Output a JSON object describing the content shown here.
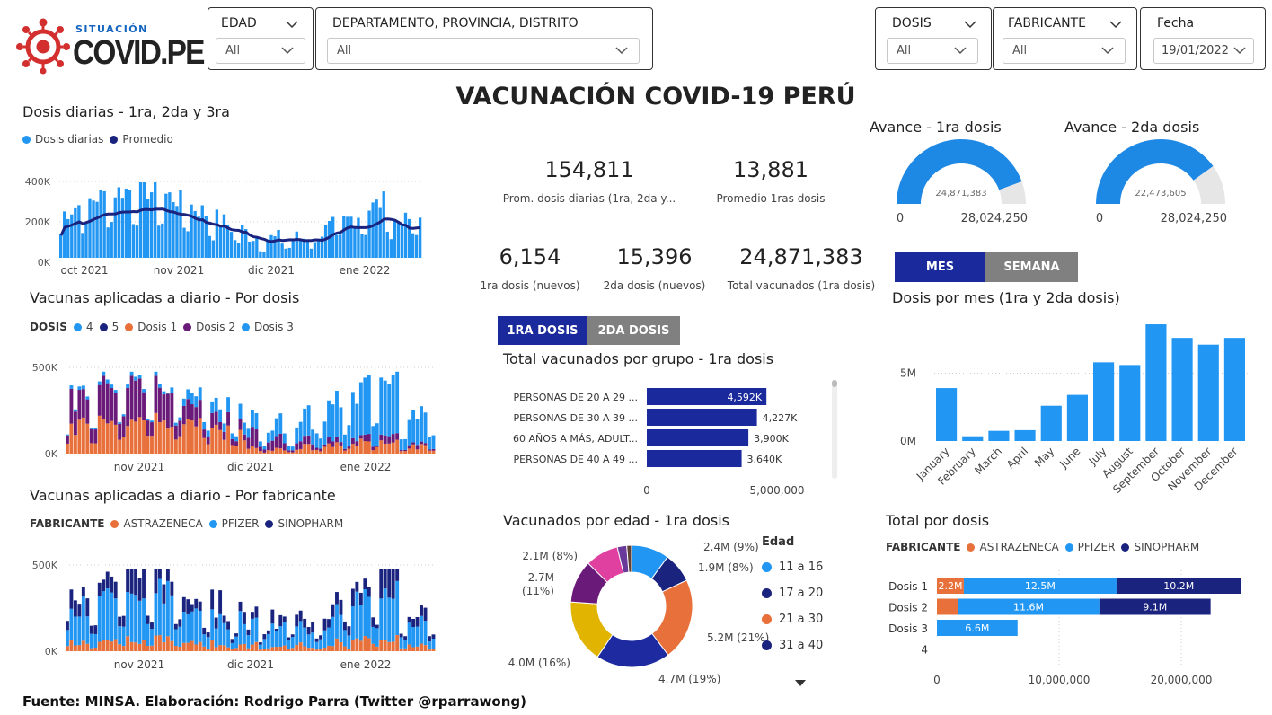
{
  "logo": {
    "top": "SITUACIÓN",
    "main": "COVID.PE"
  },
  "filters": {
    "edad": {
      "label": "EDAD",
      "value": "All"
    },
    "location": {
      "label": "DEPARTAMENTO, PROVINCIA, DISTRITO",
      "value": "All"
    },
    "dosis": {
      "label": "DOSIS",
      "value": "All"
    },
    "fabricante": {
      "label": "FABRICANTE",
      "value": "All"
    },
    "fecha": {
      "label": "Fecha",
      "value": "19/01/2022"
    }
  },
  "main_title": "VACUNACIÓN COVID-19 PERÚ",
  "kpis": {
    "prom_dosis": {
      "value": "154,811",
      "label": "Prom. dosis diarias (1ra, 2da y..."
    },
    "prom_1ras": {
      "value": "13,881",
      "label": "Promedio 1ras dosis"
    },
    "primera_nuevos": {
      "value": "6,154",
      "label": "1ra dosis (nuevos)"
    },
    "segunda_nuevos": {
      "value": "15,396",
      "label": "2da dosis (nuevos)"
    },
    "total_vacunados": {
      "value": "24,871,383",
      "label": "Total vacunados (1ra dosis)"
    }
  },
  "gauges": [
    {
      "title": "Avance - 1ra dosis",
      "center": "24,871,383",
      "min": "0",
      "max": "28,024,250",
      "fraction": 0.8875
    },
    {
      "title": "Avance - 2da dosis",
      "center": "22,473,605",
      "min": "0",
      "max": "28,024,250",
      "fraction": 0.802
    }
  ],
  "daily": {
    "title": "Dosis diarias - 1ra, 2da y 3ra",
    "legend": [
      "Dosis diarias",
      "Promedio"
    ],
    "yticks": [
      "400K",
      "200K",
      "0K"
    ],
    "xticks": [
      "oct 2021",
      "nov 2021",
      "dic 2021",
      "ene 2022"
    ],
    "colors": {
      "bars": "#2196f3",
      "line": "#1a237e"
    }
  },
  "por_dosis": {
    "title": "Vacunas aplicadas a diario - Por dosis",
    "legend_title": "DOSIS",
    "legend": [
      {
        "label": "4",
        "color": "#2196f3"
      },
      {
        "label": "5",
        "color": "#1a237e"
      },
      {
        "label": "Dosis 1",
        "color": "#e8703a"
      },
      {
        "label": "Dosis 2",
        "color": "#6a1b7a"
      },
      {
        "label": "Dosis 3",
        "color": "#2196f3"
      }
    ],
    "yticks": [
      "500K",
      "0K"
    ],
    "xticks": [
      "nov 2021",
      "dic 2021",
      "ene 2022"
    ]
  },
  "por_fabricante": {
    "title": "Vacunas aplicadas a diario - Por fabricante",
    "legend_title": "FABRICANTE",
    "legend": [
      {
        "label": "ASTRAZENECA",
        "color": "#e8703a"
      },
      {
        "label": "PFIZER",
        "color": "#2196f3"
      },
      {
        "label": "SINOPHARM",
        "color": "#1a237e"
      }
    ],
    "yticks": [
      "500K",
      "0K"
    ],
    "xticks": [
      "nov 2021",
      "dic 2021",
      "ene 2022"
    ]
  },
  "tabs_dosis": {
    "active": "1RA DOSIS",
    "inactive": "2DA DOSIS"
  },
  "tabs_period": {
    "active": "MES",
    "inactive": "SEMANA"
  },
  "grupo": {
    "title": "Total vacunados por grupo - 1ra dosis",
    "x_max": "5,000,000",
    "x_min": "0",
    "chart_data": {
      "type": "bar",
      "categories": [
        "PERSONAS DE 20 A 29 ...",
        "PERSONAS DE 30 A 39 ...",
        "60 AÑOS A MÁS, ADULT...",
        "PERSONAS DE 40 A 49 ..."
      ],
      "values": [
        4592000,
        4227000,
        3900000,
        3640000
      ],
      "labels": [
        "4,592K",
        "4,227K",
        "3,900K",
        "3,640K"
      ],
      "xlim": [
        0,
        5000000
      ]
    }
  },
  "edad": {
    "title": "Vacunados por edad - 1ra dosis",
    "legend_title": "Edad",
    "legend": [
      {
        "label": "11 a 16",
        "color": "#2196f3"
      },
      {
        "label": "17 a 20",
        "color": "#1a237e"
      },
      {
        "label": "21 a 30",
        "color": "#e8703a"
      },
      {
        "label": "31 a 40",
        "color": "#1a237e"
      }
    ],
    "chart_data": {
      "type": "pie",
      "slices": [
        {
          "value": 2.4,
          "color": "#2196f3",
          "label": "2.4M (9%)"
        },
        {
          "value": 1.9,
          "color": "#1a237e",
          "label": "1.9M (8%)"
        },
        {
          "value": 5.2,
          "color": "#e8703a",
          "label": "5.2M (21%)"
        },
        {
          "value": 4.7,
          "color": "#1e2aa0",
          "label": "4.7M (19%)"
        },
        {
          "value": 4.0,
          "color": "#e0b400",
          "label": "4.0M (16%)"
        },
        {
          "value": 2.7,
          "color": "#6a1b7a",
          "label": "2.7M (11%)"
        },
        {
          "value": 2.1,
          "color": "#e040a0",
          "label": "2.1M (8%)"
        },
        {
          "value": 0.6,
          "color": "#6a3a9a",
          "label": ""
        },
        {
          "value": 0.3,
          "color": "#5d4037",
          "label": ""
        }
      ]
    }
  },
  "mes": {
    "title": "Dosis por mes (1ra y 2da dosis)",
    "yticks": [
      "5M",
      "0M"
    ],
    "chart_data": {
      "type": "bar",
      "categories": [
        "January",
        "February",
        "March",
        "April",
        "May",
        "June",
        "July",
        "August",
        "September",
        "October",
        "November",
        "December"
      ],
      "values": [
        3.9,
        0.35,
        0.75,
        0.8,
        2.6,
        3.4,
        5.8,
        5.6,
        8.6,
        7.6,
        7.1,
        7.6
      ],
      "ylim": [
        0,
        9
      ]
    }
  },
  "total_dosis": {
    "title": "Total por dosis",
    "legend_title": "FABRICANTE",
    "legend": [
      {
        "label": "ASTRAZENECA",
        "color": "#e8703a"
      },
      {
        "label": "PFIZER",
        "color": "#2196f3"
      },
      {
        "label": "SINOPHARM",
        "color": "#1a237e"
      }
    ],
    "xticks": [
      "0",
      "10,000,000",
      "20,000,000"
    ],
    "chart_data": {
      "type": "bar",
      "categories": [
        "Dosis 1",
        "Dosis 2",
        "Dosis 3",
        "4"
      ],
      "series": [
        {
          "name": "ASTRAZENECA",
          "values": [
            2.2,
            1.7,
            0,
            0
          ],
          "labels": [
            "2.2M",
            "",
            "",
            ""
          ]
        },
        {
          "name": "PFIZER",
          "values": [
            12.5,
            11.6,
            6.6,
            0
          ],
          "labels": [
            "12.5M",
            "11.6M",
            "6.6M",
            ""
          ]
        },
        {
          "name": "SINOPHARM",
          "values": [
            10.2,
            9.1,
            0,
            0
          ],
          "labels": [
            "10.2M",
            "9.1M",
            "",
            ""
          ]
        }
      ],
      "xlim": [
        0,
        25
      ]
    }
  },
  "footer": "Fuente: MINSA. Elaboración: Rodrigo Parra (Twitter @rparrawong)"
}
